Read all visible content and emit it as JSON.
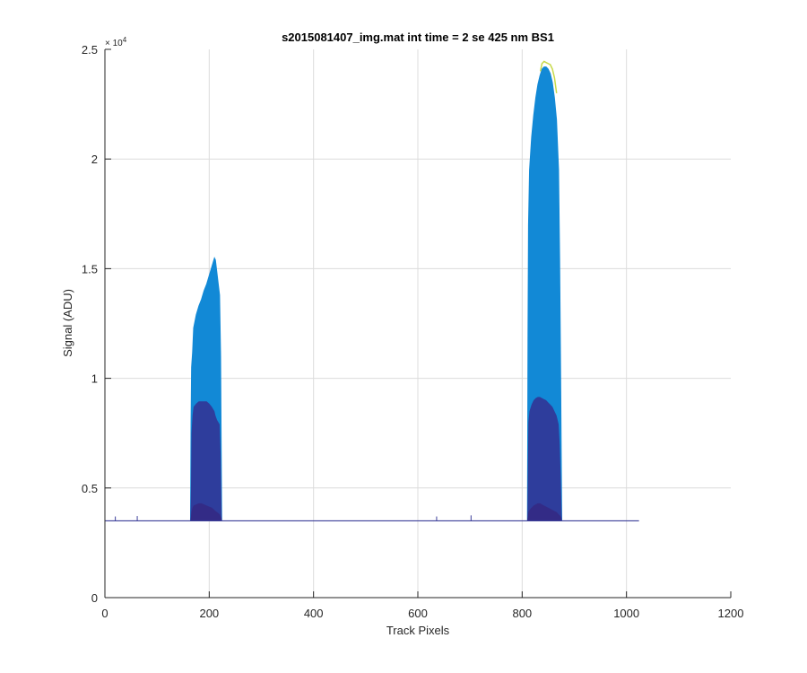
{
  "chart_data": {
    "type": "area",
    "title": "s2015081407_img.mat int time = 2 se  425 nm BS1",
    "xlabel": "Track Pixels",
    "ylabel": "Signal (ADU)",
    "xlim": [
      0,
      1200
    ],
    "ylim": [
      0,
      25000
    ],
    "x_ticks": [
      "0",
      "200",
      "400",
      "600",
      "800",
      "1000",
      "1200"
    ],
    "y_ticks": [
      "0",
      "0.5",
      "1",
      "1.5",
      "2",
      "2.5"
    ],
    "y_exponent": {
      "base": "× 10",
      "power": "4"
    },
    "grid": true,
    "baseline": 3500,
    "x_end": 1024,
    "colors": {
      "outer_fill": "#1289d6",
      "mid_fill": "#2e3d9c",
      "inner_fill": "#332b86",
      "line": "#3c3f9a",
      "tip": "#c8d94a",
      "grid": "#dcdcdc",
      "axis": "#262626"
    },
    "series": [
      {
        "x": [
          164,
          165,
          166,
          168,
          170,
          175,
          180,
          185,
          190,
          195,
          200,
          205,
          210,
          212,
          215,
          220,
          222,
          224
        ],
        "outer": [
          3600,
          8000,
          10500,
          11200,
          12300,
          12900,
          13300,
          13600,
          14000,
          14300,
          14700,
          15100,
          15500,
          15400,
          14800,
          13800,
          11000,
          3600
        ],
        "mid": [
          3600,
          5000,
          7500,
          8300,
          8700,
          8850,
          8950,
          8950,
          8950,
          8950,
          8850,
          8700,
          8500,
          8300,
          8100,
          7900,
          6500,
          3600
        ],
        "inner": [
          3600,
          3700,
          3900,
          4100,
          4200,
          4250,
          4300,
          4300,
          4250,
          4200,
          4150,
          4100,
          4000,
          3950,
          3900,
          3800,
          3700,
          3600
        ]
      },
      {
        "x": [
          810,
          811,
          812,
          814,
          818,
          822,
          826,
          830,
          834,
          838,
          842,
          846,
          850,
          854,
          858,
          862,
          866,
          870,
          872,
          874,
          876
        ],
        "outer": [
          3600,
          12000,
          17000,
          19500,
          21000,
          22000,
          22800,
          23400,
          23800,
          24100,
          24200,
          24200,
          24100,
          23900,
          23500,
          22800,
          21800,
          19500,
          15500,
          10000,
          3600
        ],
        "mid": [
          3600,
          6000,
          8000,
          8500,
          8800,
          9000,
          9100,
          9150,
          9150,
          9100,
          9050,
          9000,
          8900,
          8800,
          8700,
          8500,
          8300,
          7900,
          7000,
          5500,
          3600
        ],
        "inner": [
          3600,
          3700,
          3900,
          4000,
          4100,
          4200,
          4250,
          4300,
          4300,
          4250,
          4200,
          4150,
          4100,
          4050,
          4000,
          3950,
          3900,
          3800,
          3750,
          3700,
          3600
        ]
      }
    ],
    "tips": [
      {
        "x": [
          835,
          838,
          842,
          846,
          850,
          854,
          858,
          862,
          866
        ],
        "y": [
          24000,
          24350,
          24450,
          24400,
          24350,
          24300,
          24100,
          23700,
          23000
        ]
      }
    ],
    "spikes": [
      {
        "x": 20,
        "y": 3700
      },
      {
        "x": 62,
        "y": 3720
      },
      {
        "x": 636,
        "y": 3700
      },
      {
        "x": 702,
        "y": 3750
      }
    ]
  }
}
